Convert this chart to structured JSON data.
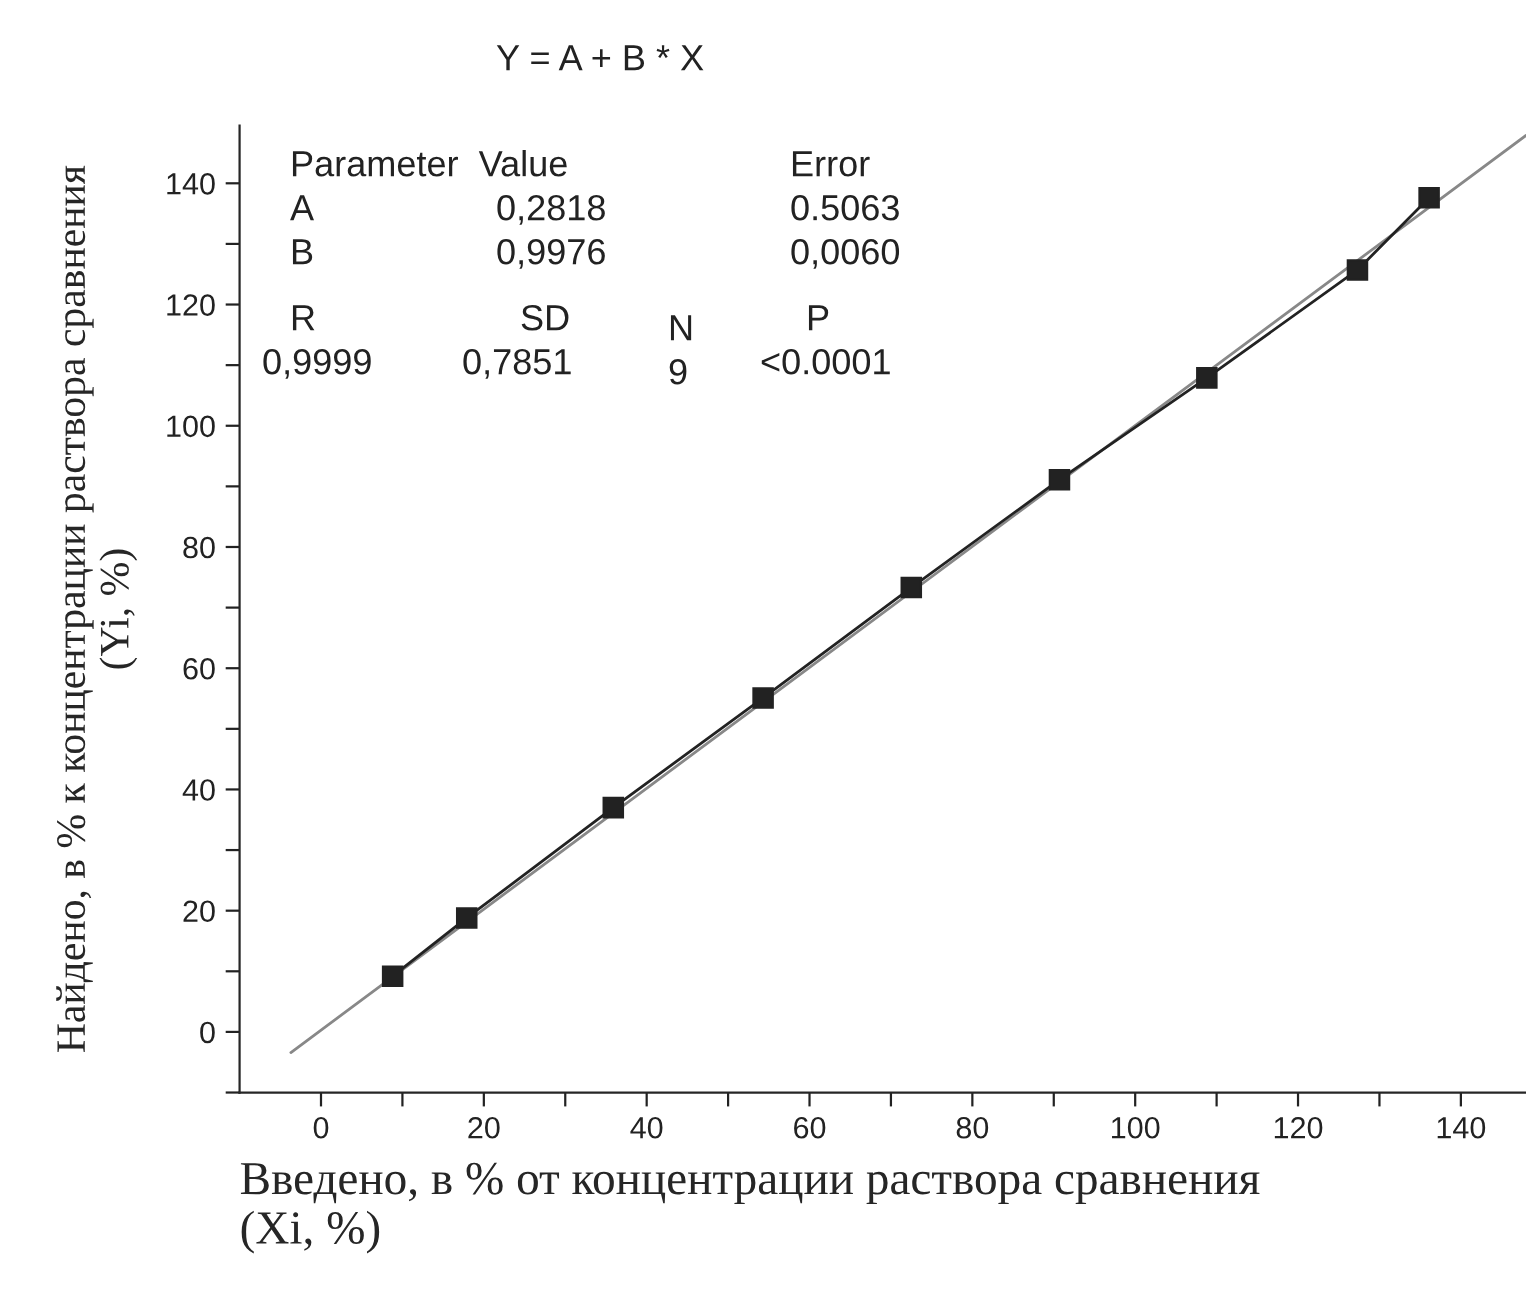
{
  "chart_data": {
    "type": "line",
    "xlabel": "Введено, в % от концентрации раствора сравнения\n(Xi, %)",
    "ylabel": "Найдено, в % к концентрации раствора сравнения\n(Yi, %)",
    "series": [
      {
        "color": "#222222",
        "marker": "square",
        "line_style": "solid",
        "x": [
          8.8,
          17.9,
          35.9,
          54.3,
          72.5,
          90.7,
          108.8,
          127.3,
          136.1
        ],
        "values": [
          9.2,
          18.8,
          37.0,
          55.1,
          73.3,
          91.1,
          107.9,
          125.7,
          137.6
        ]
      },
      {
        "type": "line",
        "color": "#888888",
        "marker": "none",
        "line_style": "solid",
        "x": [
          -3.7,
          148
        ],
        "values": [
          -3.4,
          147.9
        ]
      }
    ],
    "annotations": [
      "Y = A + B * X",
      "Parameter  Value",
      "Error",
      "A",
      "0,2818",
      "0.5063",
      "B",
      "0,9976",
      "0,0060",
      "R",
      "SD",
      "N",
      "P",
      "0,9999",
      "0,7851",
      "9",
      "<0.0001"
    ],
    "xlim": [
      -10,
      148
    ],
    "ylim": [
      -10,
      149.5
    ],
    "xticks": [
      0,
      {
        "value": 10,
        "label": null
      },
      20,
      {
        "value": 30,
        "label": null
      },
      40,
      {
        "value": 50,
        "label": null
      },
      60,
      {
        "value": 70,
        "label": null
      },
      80,
      {
        "value": 90,
        "label": null
      },
      100,
      {
        "value": 110,
        "label": null
      },
      120,
      {
        "value": 130,
        "label": null
      },
      140
    ],
    "yticks": [
      {
        "value": -10,
        "label": null
      },
      0,
      {
        "value": 10,
        "label": null
      },
      20,
      {
        "value": 30,
        "label": null
      },
      40,
      {
        "value": 50,
        "label": null
      },
      60,
      {
        "value": 70,
        "label": null
      },
      80,
      {
        "value": 90,
        "label": null
      },
      100,
      {
        "value": 110,
        "label": null
      },
      120,
      {
        "value": 130,
        "label": null
      },
      140
    ],
    "grid": false,
    "legend": false
  }
}
